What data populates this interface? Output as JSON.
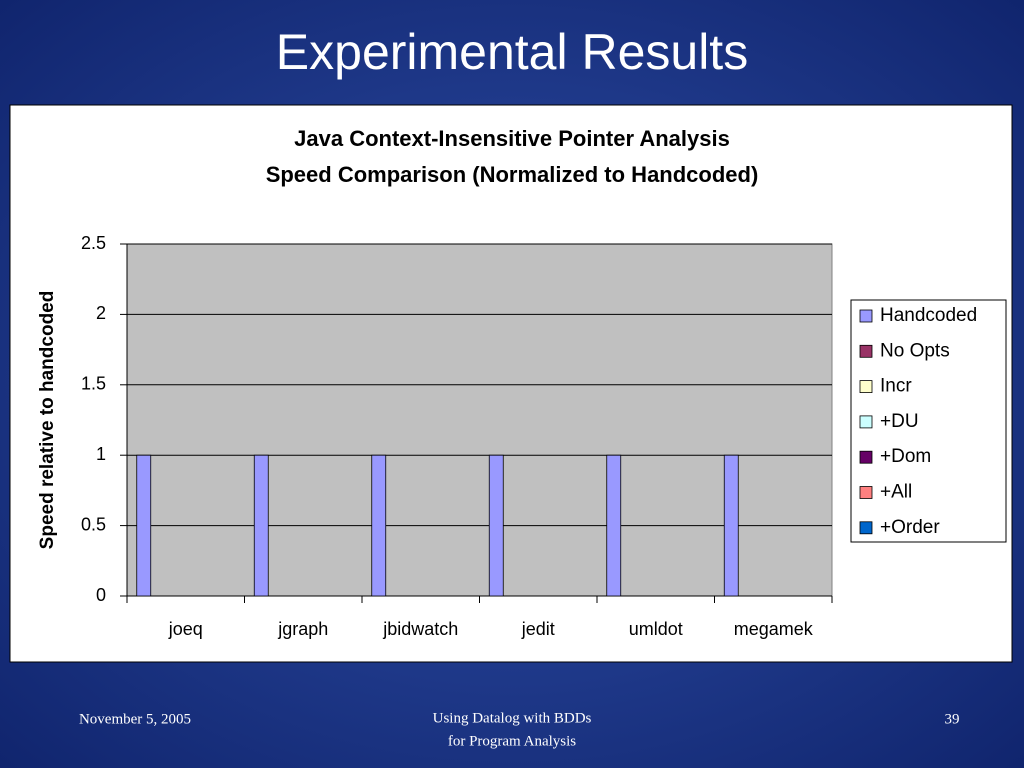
{
  "slide_title": "Experimental Results",
  "footer": {
    "date": "November 5, 2005",
    "center": [
      "Using Datalog with BDDs",
      "for Program Analysis"
    ],
    "page": "39"
  },
  "chart_data": {
    "type": "bar",
    "title": [
      "Java Context-Insensitive Pointer Analysis",
      "Speed Comparison (Normalized to Handcoded)"
    ],
    "y_label": "Speed relative to handcoded",
    "categories": [
      "joeq",
      "jgraph",
      "jbidwatch",
      "jedit",
      "umldot",
      "megamek"
    ],
    "series": [
      {
        "name": "Handcoded",
        "color": "#9999ff",
        "values": [
          1,
          1,
          1,
          1,
          1,
          1
        ]
      },
      {
        "name": "No Opts",
        "color": "#993366",
        "values": [
          null,
          null,
          null,
          null,
          null,
          null
        ]
      },
      {
        "name": "Incr",
        "color": "#ffffcc",
        "values": [
          null,
          null,
          null,
          null,
          null,
          null
        ]
      },
      {
        "name": "+DU",
        "color": "#ccffff",
        "values": [
          null,
          null,
          null,
          null,
          null,
          null
        ]
      },
      {
        "name": "+Dom",
        "color": "#660066",
        "values": [
          null,
          null,
          null,
          null,
          null,
          null
        ]
      },
      {
        "name": "+All",
        "color": "#ff8080",
        "values": [
          null,
          null,
          null,
          null,
          null,
          null
        ]
      },
      {
        "name": "+Order",
        "color": "#0066cc",
        "values": [
          null,
          null,
          null,
          null,
          null,
          null
        ]
      }
    ],
    "ylim": [
      0,
      2.5
    ],
    "yticks": [
      0,
      0.5,
      1,
      1.5,
      2,
      2.5
    ],
    "grid": true,
    "legend": "right"
  }
}
